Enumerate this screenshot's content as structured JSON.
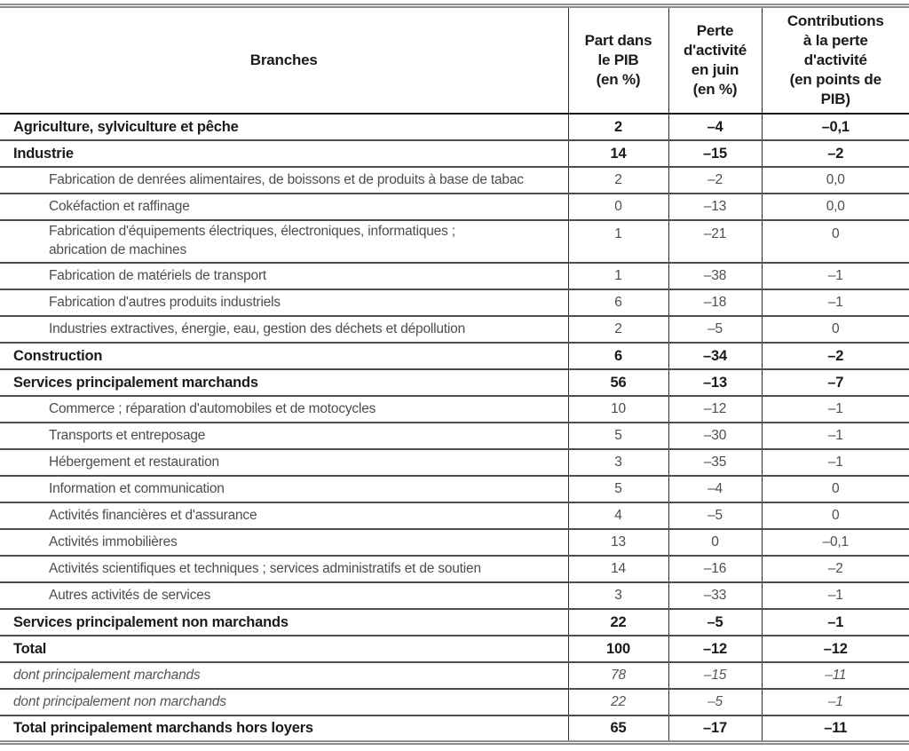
{
  "document": {
    "table": {
      "columns": [
        {
          "id": "branches",
          "label": "Branches"
        },
        {
          "id": "part_pib",
          "label": "Part dans\nle PIB\n(en %)"
        },
        {
          "id": "perte_activite_juin",
          "label": "Perte\nd'activité\nen juin\n(en %)"
        },
        {
          "id": "contributions_perte",
          "label": "Contributions\nà la perte\nd'activité\n(en points de\nPIB)"
        }
      ],
      "rows": [
        {
          "label": "Agriculture, sylviculture et pêche",
          "style": "bold",
          "indent": 0,
          "values": [
            "2",
            "–4",
            "–0,1"
          ]
        },
        {
          "label": "Industrie",
          "style": "bold",
          "indent": 0,
          "values": [
            "14",
            "–15",
            "–2"
          ]
        },
        {
          "label": "Fabrication de denrées alimentaires, de boissons et de produits à base de tabac",
          "style": "normal",
          "indent": 1,
          "values": [
            "2",
            "–2",
            "0,0"
          ]
        },
        {
          "label": "Cokéfaction et raffinage",
          "style": "normal",
          "indent": 1,
          "values": [
            "0",
            "–13",
            "0,0"
          ]
        },
        {
          "label": "Fabrication d'équipements électriques, électroniques, informatiques ;\nabrication de machines",
          "style": "normal",
          "indent": 1,
          "values": [
            "1",
            "–21",
            "0"
          ]
        },
        {
          "label": "Fabrication de matériels de transport",
          "style": "normal",
          "indent": 1,
          "values": [
            "1",
            "–38",
            "–1"
          ]
        },
        {
          "label": "Fabrication d'autres produits industriels",
          "style": "normal",
          "indent": 1,
          "values": [
            "6",
            "–18",
            "–1"
          ]
        },
        {
          "label": "Industries extractives, énergie, eau, gestion des déchets et dépollution",
          "style": "normal",
          "indent": 1,
          "values": [
            "2",
            "–5",
            "0"
          ]
        },
        {
          "label": "Construction",
          "style": "bold",
          "indent": 0,
          "values": [
            "6",
            "–34",
            "–2"
          ]
        },
        {
          "label": "Services principalement marchands",
          "style": "bold",
          "indent": 0,
          "values": [
            "56",
            "–13",
            "–7"
          ]
        },
        {
          "label": "Commerce ; réparation d'automobiles et de motocycles",
          "style": "normal",
          "indent": 1,
          "values": [
            "10",
            "–12",
            "–1"
          ]
        },
        {
          "label": "Transports et entreposage",
          "style": "normal",
          "indent": 1,
          "values": [
            "5",
            "–30",
            "–1"
          ]
        },
        {
          "label": "Hébergement et restauration",
          "style": "normal",
          "indent": 1,
          "values": [
            "3",
            "–35",
            "–1"
          ]
        },
        {
          "label": "Information et communication",
          "style": "normal",
          "indent": 1,
          "values": [
            "5",
            "–4",
            "0"
          ]
        },
        {
          "label": "Activités financières et d'assurance",
          "style": "normal",
          "indent": 1,
          "values": [
            "4",
            "–5",
            "0"
          ]
        },
        {
          "label": "Activités immobilières",
          "style": "normal",
          "indent": 1,
          "values": [
            "13",
            "0",
            "–0,1"
          ]
        },
        {
          "label": "Activités scientifiques et techniques ; services administratifs et de soutien",
          "style": "normal",
          "indent": 1,
          "values": [
            "14",
            "–16",
            "–2"
          ]
        },
        {
          "label": "Autres activités de services",
          "style": "normal",
          "indent": 1,
          "values": [
            "3",
            "–33",
            "–1"
          ]
        },
        {
          "label": "Services principalement non marchands",
          "style": "bold",
          "indent": 0,
          "values": [
            "22",
            "–5",
            "–1"
          ]
        },
        {
          "label": "Total",
          "style": "bold",
          "indent": 0,
          "values": [
            "100",
            "–12",
            "–12"
          ]
        },
        {
          "label": "dont principalement marchands",
          "style": "italic",
          "indent": 0,
          "values": [
            "78",
            "–15",
            "–11"
          ]
        },
        {
          "label": "dont principalement non marchands",
          "style": "italic",
          "indent": 0,
          "values": [
            "22",
            "–5",
            "–1"
          ]
        },
        {
          "label": "Total principalement marchands hors loyers",
          "style": "bold",
          "indent": 0,
          "values": [
            "65",
            "–17",
            "–11"
          ]
        }
      ]
    },
    "colors": {
      "text_primary": "#1b1b1b",
      "text_secondary": "#4d4d4d",
      "row_rule": "#4e4e4e",
      "header_rule": "#141414",
      "outer_double_rule": "#8c8c8c"
    }
  }
}
